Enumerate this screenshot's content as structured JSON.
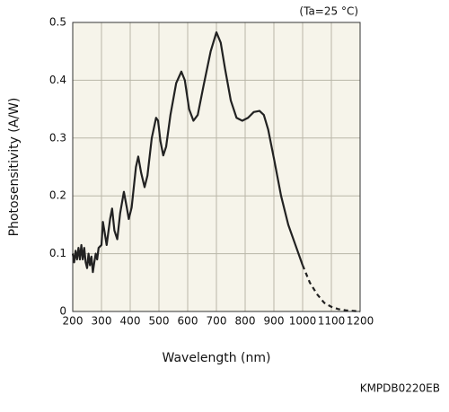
{
  "chart_data": {
    "type": "line",
    "condition": "(Ta=25 °C)",
    "xlabel": "Wavelength (nm)",
    "ylabel": "Photosensitivity (A/W)",
    "code": "KMPDB0220EB",
    "xlim": [
      200,
      1200
    ],
    "ylim": [
      0,
      0.5
    ],
    "xticks": [
      200,
      300,
      400,
      500,
      600,
      700,
      800,
      900,
      1000,
      1100,
      1200
    ],
    "yticks": [
      0,
      0.1,
      0.2,
      0.3,
      0.4,
      0.5
    ],
    "grid": true,
    "series": [
      {
        "color": "#222222",
        "dashed": false,
        "x": [
          200,
          205,
          210,
          215,
          220,
          225,
          230,
          235,
          240,
          245,
          250,
          255,
          260,
          265,
          270,
          275,
          280,
          285,
          290,
          300,
          305,
          310,
          318,
          330,
          337,
          345,
          355,
          365,
          378,
          388,
          395,
          405,
          420,
          428,
          438,
          450,
          460,
          475,
          490,
          497,
          505,
          515,
          525,
          540,
          560,
          578,
          590,
          605,
          620,
          635,
          655,
          680,
          700,
          715,
          730,
          750,
          770,
          790,
          810,
          830,
          850,
          865,
          880,
          900,
          925,
          950,
          975,
          1000
        ],
        "values": [
          0.1,
          0.085,
          0.105,
          0.09,
          0.11,
          0.09,
          0.115,
          0.09,
          0.11,
          0.085,
          0.075,
          0.1,
          0.08,
          0.095,
          0.068,
          0.085,
          0.1,
          0.09,
          0.11,
          0.115,
          0.155,
          0.14,
          0.115,
          0.16,
          0.178,
          0.14,
          0.125,
          0.17,
          0.207,
          0.18,
          0.16,
          0.18,
          0.25,
          0.268,
          0.24,
          0.215,
          0.235,
          0.3,
          0.335,
          0.33,
          0.295,
          0.27,
          0.285,
          0.34,
          0.395,
          0.415,
          0.4,
          0.35,
          0.33,
          0.34,
          0.39,
          0.45,
          0.483,
          0.465,
          0.42,
          0.365,
          0.335,
          0.33,
          0.335,
          0.345,
          0.347,
          0.34,
          0.315,
          0.265,
          0.2,
          0.15,
          0.115,
          0.08
        ]
      },
      {
        "color": "#222222",
        "dashed": true,
        "x": [
          1000,
          1025,
          1050,
          1075,
          1100,
          1125,
          1150,
          1175,
          1200
        ],
        "values": [
          0.08,
          0.05,
          0.03,
          0.015,
          0.008,
          0.004,
          0.002,
          0.001,
          0
        ]
      }
    ]
  }
}
